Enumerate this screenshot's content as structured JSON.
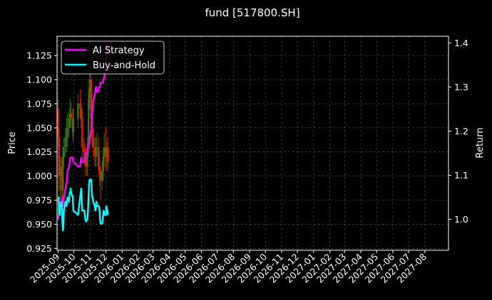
{
  "chart_data": {
    "type": "line",
    "title": "fund [517800.SH]",
    "ylabel": "Price",
    "ylabel_right": "Return",
    "grid": true,
    "legend_placement": "top-left",
    "x_ticks": [
      "2025-09",
      "2025-10",
      "2025-11",
      "2025-12",
      "2026-01",
      "2026-02",
      "2026-03",
      "2026-04",
      "2026-05",
      "2026-06",
      "2026-07",
      "2026-08",
      "2026-09",
      "2026-10",
      "2026-11",
      "2026-12",
      "2027-01",
      "2027-02",
      "2027-03",
      "2027-04",
      "2027-05",
      "2027-06",
      "2027-07",
      "2027-08"
    ],
    "y_ticks": [
      "0.925",
      "0.950",
      "0.975",
      "1.000",
      "1.025",
      "1.050",
      "1.075",
      "1.100",
      "1.125"
    ],
    "y_ticks_right": [
      "1.0",
      "1.1",
      "1.2",
      "1.3",
      "1.4"
    ],
    "xlim": [
      "2025-08-30",
      "2027-09-15"
    ],
    "ylim": [
      0.923,
      1.145
    ],
    "ylim_right": [
      0.93,
      1.415
    ],
    "colors": {
      "background": "#000000",
      "axes": "#ffffff",
      "grid": "#555555",
      "up": "#2e7d0c",
      "down": "#e0200c",
      "ai_strategy": "#ff00ff",
      "buy_and_hold": "#00ffff"
    },
    "series": [
      {
        "name": "AI Strategy",
        "axis": "right",
        "x": [
          "2025-09-01",
          "2025-09-02",
          "2025-09-03",
          "2025-09-04",
          "2025-09-05",
          "2025-09-08",
          "2025-09-09",
          "2025-09-10",
          "2025-09-11",
          "2025-09-12",
          "2025-09-15",
          "2025-09-16",
          "2025-09-17",
          "2025-09-18",
          "2025-09-19",
          "2025-09-22",
          "2025-09-23",
          "2025-09-24",
          "2025-09-25",
          "2025-09-26",
          "2025-09-29",
          "2025-09-30",
          "2025-10-09",
          "2025-10-10",
          "2025-10-13",
          "2025-10-14",
          "2025-10-15",
          "2025-10-16",
          "2025-10-17",
          "2025-10-20",
          "2025-10-21",
          "2025-10-22",
          "2025-10-23",
          "2025-10-24",
          "2025-10-27",
          "2025-10-28",
          "2025-10-29",
          "2025-10-30",
          "2025-10-31",
          "2025-11-03",
          "2025-11-04",
          "2025-11-05",
          "2025-11-06",
          "2025-11-07",
          "2025-11-10",
          "2025-11-11",
          "2025-11-12",
          "2025-11-13",
          "2025-11-14",
          "2025-11-17",
          "2025-11-18",
          "2025-11-19",
          "2025-11-20",
          "2025-11-21",
          "2025-11-24",
          "2025-11-25",
          "2025-11-26",
          "2025-11-27",
          "2025-11-28",
          "2025-12-01",
          "2025-12-02",
          "2025-12-03",
          "2025-12-04",
          "2025-12-05"
        ],
        "values": [
          1.0,
          1.01,
          1.03,
          1.04,
          1.04,
          1.03,
          1.05,
          1.03,
          1.04,
          1.05,
          1.07,
          1.08,
          1.08,
          1.1,
          1.11,
          1.12,
          1.13,
          1.14,
          1.14,
          1.14,
          1.14,
          1.13,
          1.12,
          1.12,
          1.12,
          1.13,
          1.14,
          1.14,
          1.13,
          1.13,
          1.13,
          1.14,
          1.14,
          1.15,
          1.15,
          1.16,
          1.17,
          1.17,
          1.18,
          1.2,
          1.22,
          1.24,
          1.26,
          1.27,
          1.28,
          1.29,
          1.3,
          1.3,
          1.29,
          1.29,
          1.3,
          1.3,
          1.3,
          1.31,
          1.31,
          1.31,
          1.31,
          1.32,
          1.32,
          1.36,
          1.37,
          1.38,
          1.39,
          1.4
        ]
      },
      {
        "name": "Buy-and-Hold",
        "axis": "right",
        "x": [
          "2025-09-01",
          "2025-09-02",
          "2025-09-03",
          "2025-09-04",
          "2025-09-05",
          "2025-09-08",
          "2025-09-09",
          "2025-09-10",
          "2025-09-11",
          "2025-09-12",
          "2025-09-15",
          "2025-09-16",
          "2025-09-17",
          "2025-09-18",
          "2025-09-19",
          "2025-09-22",
          "2025-09-23",
          "2025-09-24",
          "2025-09-25",
          "2025-09-26",
          "2025-09-29",
          "2025-09-30",
          "2025-10-09",
          "2025-10-10",
          "2025-10-13",
          "2025-10-14",
          "2025-10-15",
          "2025-10-16",
          "2025-10-17",
          "2025-10-20",
          "2025-10-21",
          "2025-10-22",
          "2025-10-23",
          "2025-10-24",
          "2025-10-27",
          "2025-10-28",
          "2025-10-29",
          "2025-10-30",
          "2025-10-31",
          "2025-11-03",
          "2025-11-04",
          "2025-11-05",
          "2025-11-06",
          "2025-11-07",
          "2025-11-10",
          "2025-11-11",
          "2025-11-12",
          "2025-11-13",
          "2025-11-14",
          "2025-11-17",
          "2025-11-18",
          "2025-11-19",
          "2025-11-20",
          "2025-11-21",
          "2025-11-24",
          "2025-11-25",
          "2025-11-26",
          "2025-11-27",
          "2025-11-28",
          "2025-12-01",
          "2025-12-02",
          "2025-12-03",
          "2025-12-04",
          "2025-12-05"
        ],
        "values": [
          1.05,
          1.05,
          1.02,
          1.01,
          1.03,
          1.04,
          1.0,
          0.975,
          0.98,
          1.02,
          1.04,
          1.04,
          1.03,
          1.04,
          1.05,
          1.04,
          1.06,
          1.06,
          1.07,
          1.06,
          1.05,
          1.02,
          1.01,
          1.02,
          1.05,
          1.06,
          1.07,
          1.05,
          1.02,
          1.02,
          1.02,
          1.01,
          1.0,
          0.995,
          1.0,
          1.02,
          1.05,
          1.08,
          1.09,
          1.09,
          1.07,
          1.05,
          1.05,
          1.04,
          1.03,
          1.02,
          1.03,
          1.04,
          1.03,
          1.03,
          1.03,
          1.02,
          1.0,
          0.99,
          0.99,
          1.0,
          1.01,
          1.02,
          1.01,
          1.01,
          1.03,
          1.02,
          1.02,
          1.01
        ]
      }
    ],
    "candlesticks": {
      "axis": "left",
      "x": [
        "2025-09-01",
        "2025-09-03",
        "2025-09-05",
        "2025-09-08",
        "2025-09-10",
        "2025-09-12",
        "2025-09-15",
        "2025-09-17",
        "2025-09-19",
        "2025-09-22",
        "2025-09-24",
        "2025-09-26",
        "2025-09-29",
        "2025-09-30",
        "2025-10-09",
        "2025-10-13",
        "2025-10-15",
        "2025-10-17",
        "2025-10-20",
        "2025-10-22",
        "2025-10-24",
        "2025-10-27",
        "2025-10-29",
        "2025-10-31",
        "2025-11-03",
        "2025-11-05",
        "2025-11-07",
        "2025-11-10",
        "2025-11-12",
        "2025-11-14",
        "2025-11-17",
        "2025-11-19",
        "2025-11-21",
        "2025-11-24",
        "2025-11-26",
        "2025-11-28",
        "2025-12-01",
        "2025-12-03",
        "2025-12-05"
      ],
      "open": [
        1.07,
        1.04,
        1.0,
        1.01,
        0.985,
        1.02,
        1.03,
        1.04,
        1.04,
        1.05,
        1.06,
        1.065,
        1.06,
        1.045,
        1.06,
        1.075,
        1.07,
        1.06,
        1.03,
        1.025,
        1.02,
        1.01,
        1.03,
        1.08,
        1.1,
        1.06,
        1.04,
        1.03,
        1.02,
        1.03,
        1.03,
        1.01,
        1.005,
        0.995,
        1.005,
        1.02,
        1.03,
        1.02,
        1.03
      ],
      "close": [
        1.04,
        1.0,
        1.01,
        0.985,
        1.02,
        1.03,
        1.04,
        1.04,
        1.05,
        1.06,
        1.065,
        1.06,
        1.045,
        1.06,
        1.075,
        1.07,
        1.06,
        1.03,
        1.025,
        1.02,
        1.01,
        1.03,
        1.08,
        1.1,
        1.06,
        1.04,
        1.03,
        1.02,
        1.03,
        1.03,
        1.01,
        1.005,
        0.995,
        1.005,
        1.02,
        1.03,
        1.02,
        1.03,
        1.015
      ],
      "high": [
        1.08,
        1.05,
        1.02,
        1.02,
        1.03,
        1.04,
        1.05,
        1.06,
        1.065,
        1.07,
        1.08,
        1.075,
        1.07,
        1.07,
        1.085,
        1.09,
        1.08,
        1.07,
        1.04,
        1.035,
        1.03,
        1.04,
        1.09,
        1.11,
        1.11,
        1.07,
        1.05,
        1.04,
        1.04,
        1.045,
        1.04,
        1.02,
        1.01,
        1.015,
        1.03,
        1.045,
        1.05,
        1.035,
        1.04
      ],
      "low": [
        1.03,
        0.985,
        0.975,
        0.97,
        0.975,
        1.01,
        1.02,
        1.025,
        1.03,
        1.04,
        1.05,
        1.05,
        1.04,
        1.035,
        1.05,
        1.06,
        1.05,
        1.02,
        1.015,
        1.01,
        1.0,
        1.0,
        1.02,
        1.07,
        1.05,
        1.03,
        1.02,
        1.01,
        1.01,
        1.02,
        1.0,
        0.99,
        0.975,
        0.985,
        0.995,
        1.01,
        1.005,
        1.01,
        1.005
      ]
    }
  }
}
